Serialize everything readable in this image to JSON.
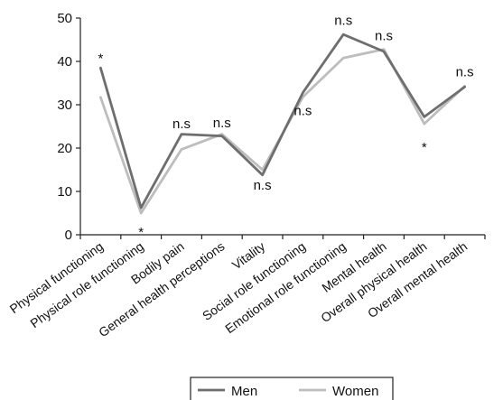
{
  "chart_data": {
    "type": "line",
    "title": "",
    "xlabel": "",
    "ylabel": "",
    "ylim": [
      0,
      50
    ],
    "yticks": [
      0,
      10,
      20,
      30,
      40,
      50
    ],
    "grid": false,
    "legend_position": "bottom",
    "categories": [
      "Physical functioning",
      "Physical role functioning",
      "Bodily pain",
      "General health perceptions",
      "Vitality",
      "Social role functioning",
      "Emotional role functioning",
      "Mental health",
      "Overall physical health",
      "Overall mental health"
    ],
    "series": [
      {
        "name": "Men",
        "color": "#6e6e6e",
        "values": [
          38.5,
          6.2,
          23.2,
          22.8,
          13.8,
          32.8,
          46.2,
          42.3,
          27.2,
          34.1
        ]
      },
      {
        "name": "Women",
        "color": "#bdbdbd",
        "values": [
          31.7,
          5.0,
          19.7,
          23.2,
          15.0,
          31.8,
          40.8,
          42.8,
          25.6,
          34.3
        ]
      }
    ],
    "annotations": [
      {
        "category": "Physical functioning",
        "text": "*",
        "anchor_value": 41.6
      },
      {
        "category": "Physical role functioning",
        "text": "*",
        "anchor_value": 1.5
      },
      {
        "category": "Bodily pain",
        "text": "n.s",
        "anchor_value": 24.6
      },
      {
        "category": "General health perceptions",
        "text": "n.s",
        "anchor_value": 24.8
      },
      {
        "category": "Vitality",
        "text": "n.s",
        "anchor_value": 10.4
      },
      {
        "category": "Social role functioning",
        "text": "n.s",
        "anchor_value": 27.6
      },
      {
        "category": "Emotional role functioning",
        "text": "n.s",
        "anchor_value": 48.4
      },
      {
        "category": "Mental health",
        "text": "n.s",
        "anchor_value": 44.9
      },
      {
        "category": "Overall physical health",
        "text": "*",
        "anchor_value": 21.0
      },
      {
        "category": "Overall mental health",
        "text": "n.s",
        "anchor_value": 36.6
      }
    ]
  }
}
